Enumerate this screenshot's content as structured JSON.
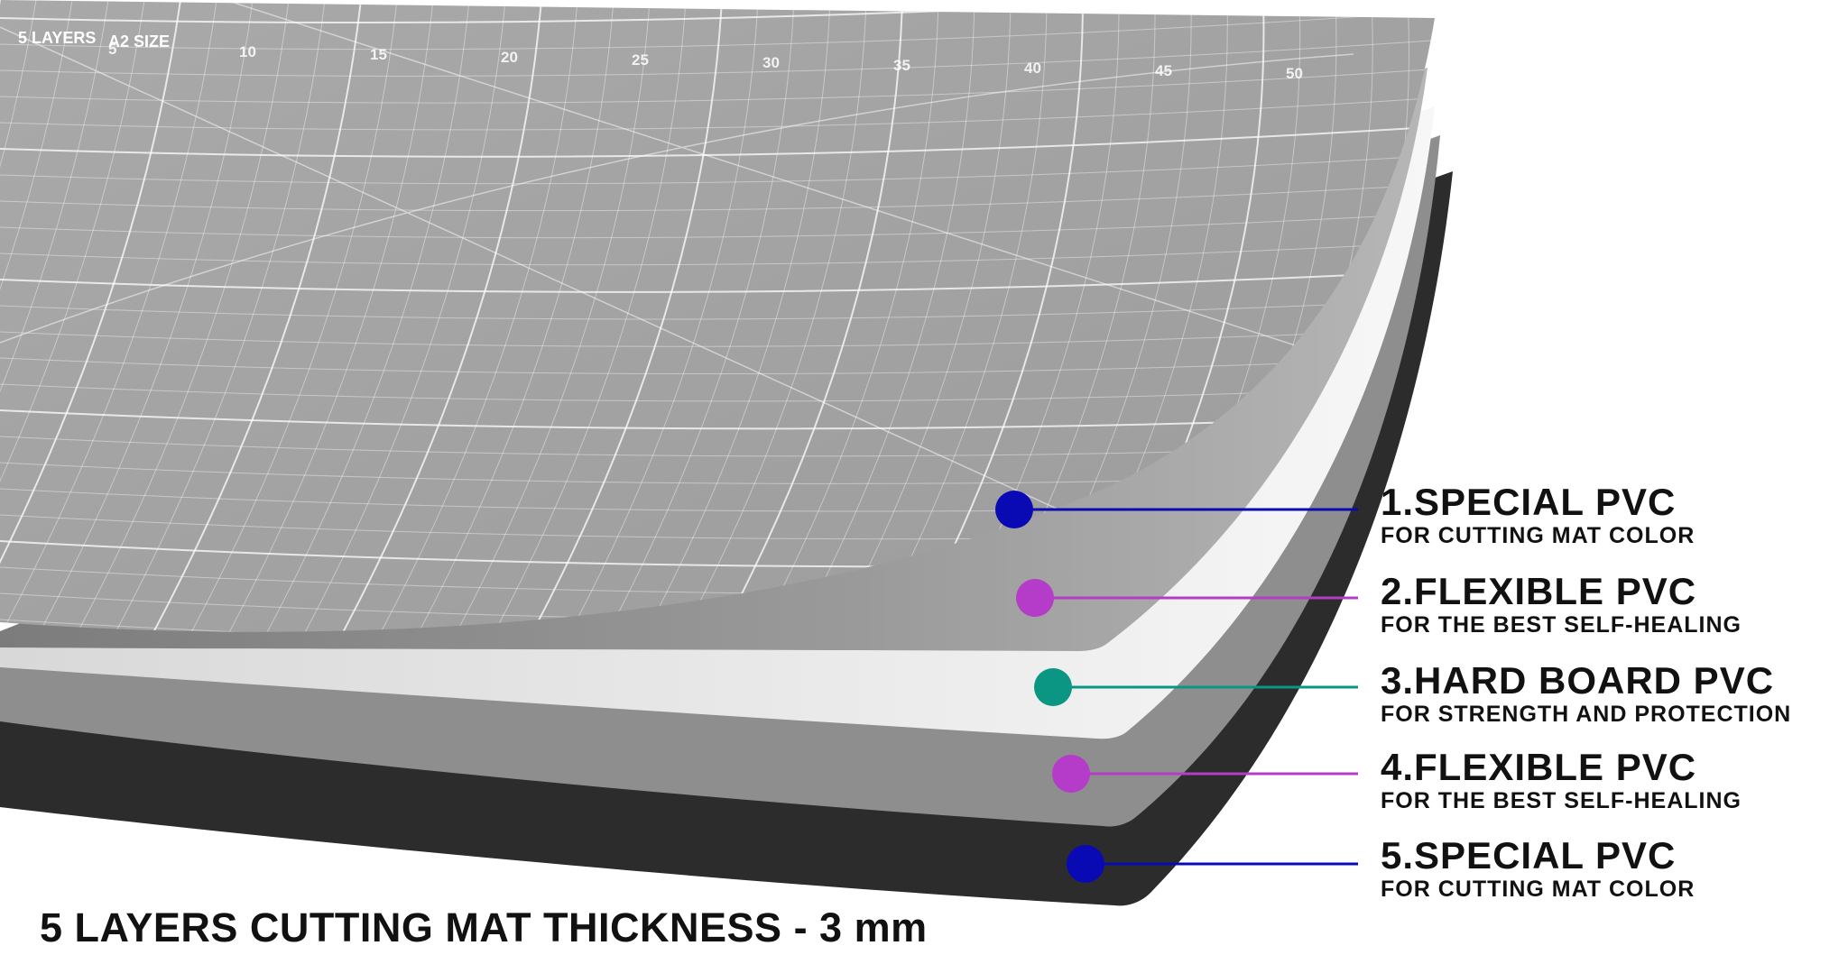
{
  "mat_print": {
    "layers": "5 LAYERS",
    "size": "A2 SIZE",
    "scale_numbers": [
      "5",
      "10",
      "15",
      "20",
      "25",
      "30",
      "35",
      "40",
      "45",
      "50"
    ]
  },
  "layers": [
    {
      "title": "1.SPECIAL PVC",
      "subtitle": "FOR CUTTING MAT COLOR",
      "color": "#0a0ab4"
    },
    {
      "title": "2.FLEXIBLE PVC",
      "subtitle": "FOR THE BEST SELF-HEALING",
      "color": "#b43cc8"
    },
    {
      "title": "3.HARD BOARD PVC",
      "subtitle": "FOR STRENGTH AND PROTECTION",
      "color": "#0a9682"
    },
    {
      "title": "4.FLEXIBLE PVC",
      "subtitle": "FOR THE BEST SELF-HEALING",
      "color": "#b43cc8"
    },
    {
      "title": "5.SPECIAL PVC",
      "subtitle": "FOR CUTTING MAT COLOR",
      "color": "#0a0ab4"
    }
  ],
  "footer": "5 LAYERS CUTTING MAT THICKNESS - 3 mm"
}
